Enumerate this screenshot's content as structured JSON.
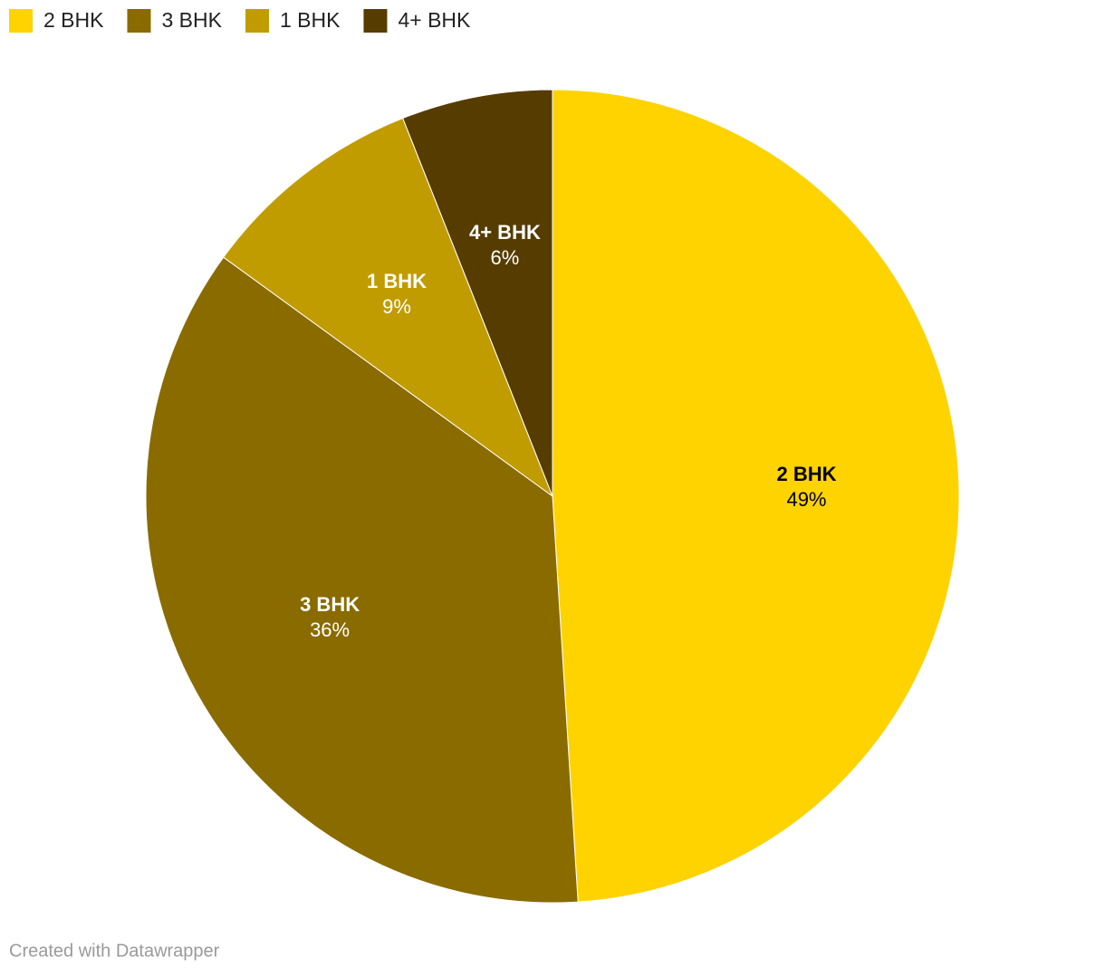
{
  "chart_data": {
    "type": "pie",
    "categories": [
      "2 BHK",
      "3 BHK",
      "1 BHK",
      "4+ BHK"
    ],
    "values": [
      49,
      36,
      9,
      6
    ],
    "value_labels": [
      "49%",
      "36%",
      "9%",
      "6%"
    ],
    "colors": [
      "#fed300",
      "#8a6b00",
      "#c19c00",
      "#573c00"
    ],
    "legend": "top-left",
    "credit": "Created with Datawrapper"
  }
}
